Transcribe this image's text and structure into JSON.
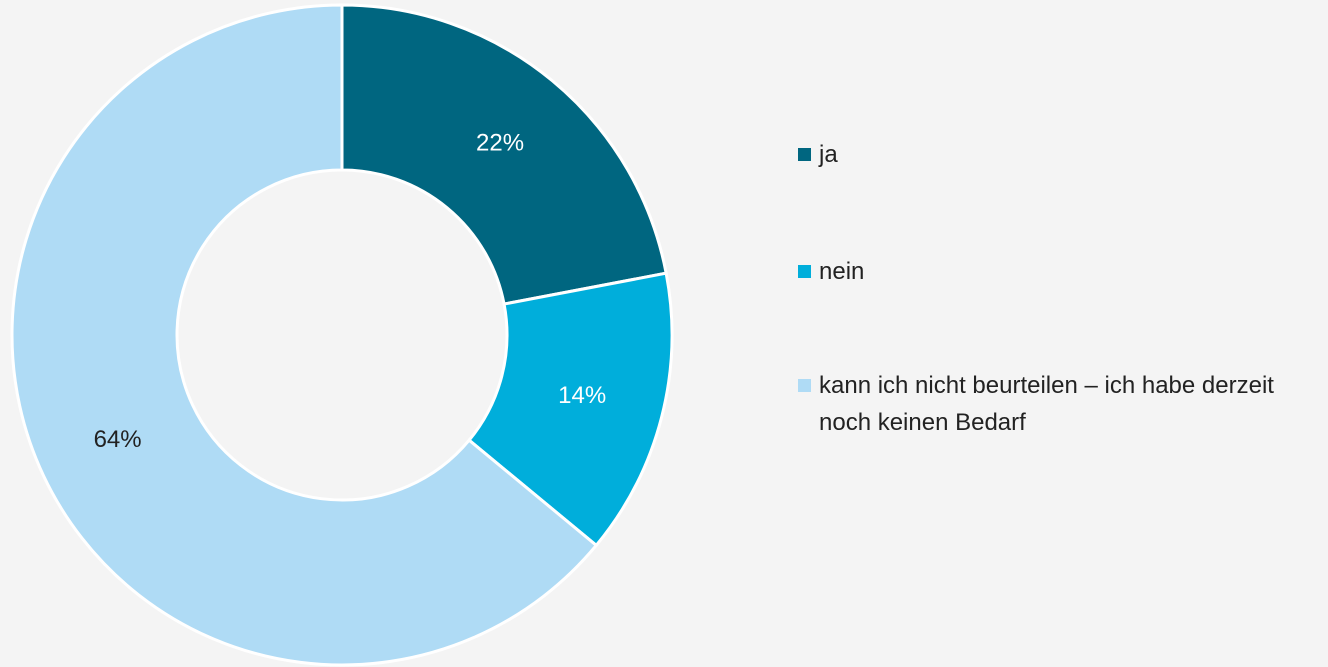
{
  "chart_data": {
    "type": "donut",
    "categories": [
      "ja",
      "nein",
      "kann ich nicht beurteilen – ich habe derzeit noch keinen Bedarf"
    ],
    "values": [
      22,
      14,
      64
    ],
    "value_labels": [
      "22%",
      "14%",
      "64%"
    ],
    "colors": [
      "#006680",
      "#00aedb",
      "#afdbf5"
    ],
    "label_colors": [
      "#ffffff",
      "#ffffff",
      "#222222"
    ],
    "legend": "right"
  }
}
